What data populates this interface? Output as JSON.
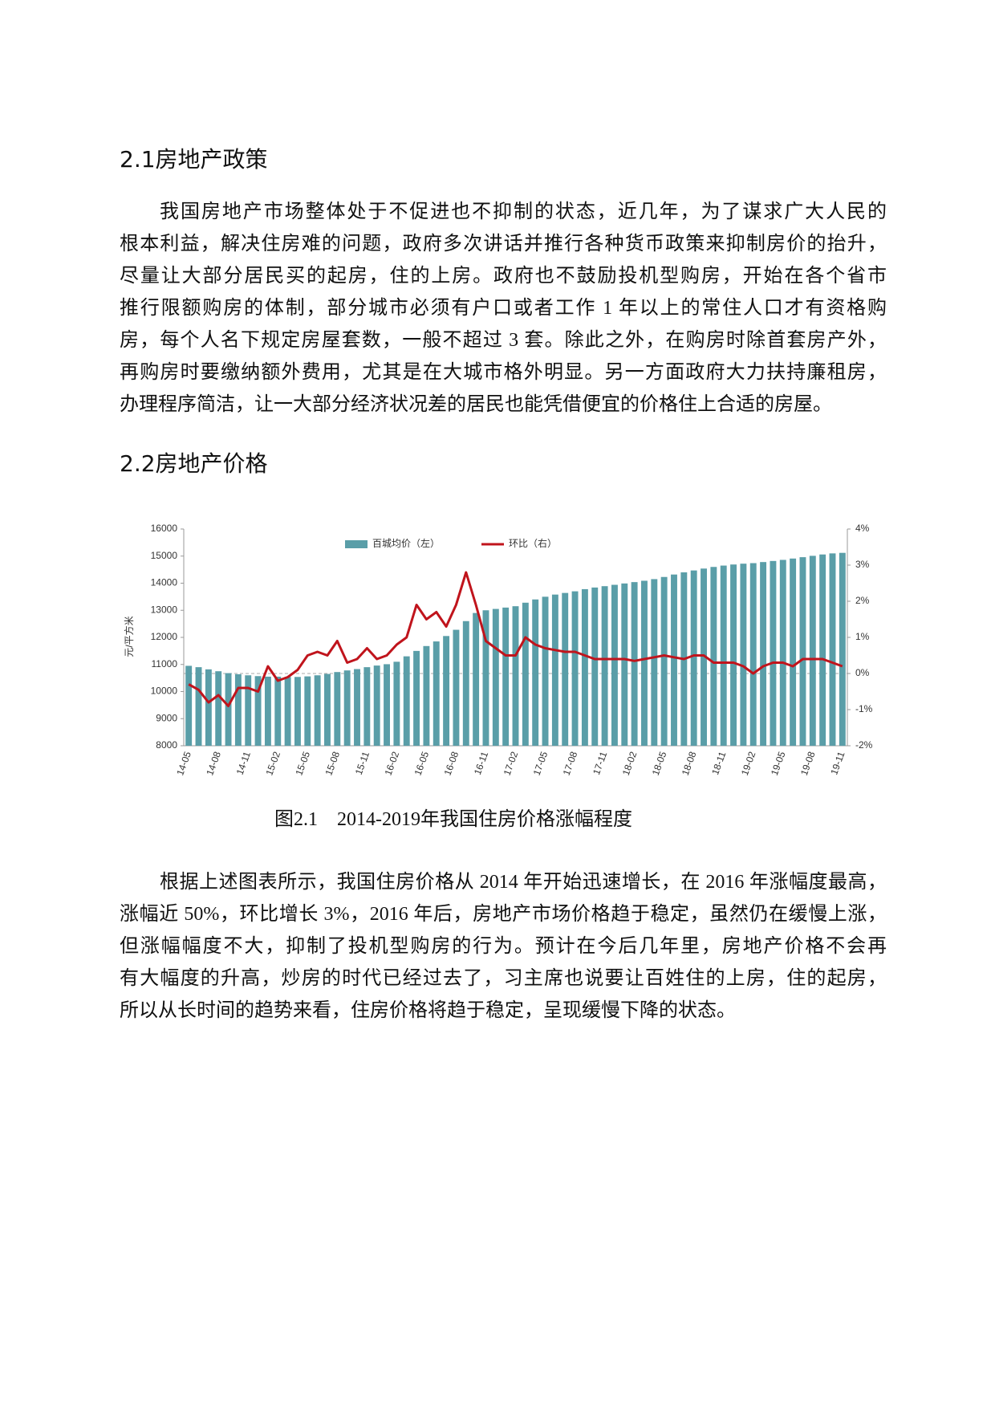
{
  "heading_1": "2.1房地产政策",
  "paragraph_1": [
    "我国房地产市场整体处于不促进也不抑制的状态，近几年，为了谋求广大人民的",
    "根本利益，解决住房难的问题，政府多次讲话并推行各种货币政策来抑制房价的抬升，",
    "尽量让大部分居民买的起房，住的上房。政府也不鼓励投机型购房，开始在各个省市",
    "推行限额购房的体制，部分城市必须有户口或者工作 1 年以上的常住人口才有资格购",
    "房，每个人名下规定房屋套数，一般不超过 3 套。除此之外，在购房时除首套房产外，",
    "再购房时要缴纳额外费用，尤其是在大城市格外明显。另一方面政府大力扶持廉租房，",
    "办理程序简洁，让一大部分经济状况差的居民也能凭借便宜的价格住上合适的房屋。"
  ],
  "heading_2": "2.2房地产价格",
  "chart_data": {
    "type": "combo",
    "y_label": "元/平方米",
    "categories": [
      "14-05",
      null,
      null,
      "14-08",
      null,
      null,
      "14-11",
      null,
      null,
      "15-02",
      null,
      null,
      "15-05",
      null,
      null,
      "15-08",
      null,
      null,
      "15-11",
      null,
      null,
      "16-02",
      null,
      null,
      "16-05",
      null,
      null,
      "16-08",
      null,
      null,
      "16-11",
      null,
      null,
      "17-02",
      null,
      null,
      "17-05",
      null,
      null,
      "17-08",
      null,
      null,
      "17-11",
      null,
      null,
      "18-02",
      null,
      null,
      "18-05",
      null,
      null,
      "18-08",
      null,
      null,
      "18-11",
      null,
      null,
      "19-02",
      null,
      null,
      "19-05",
      null,
      null,
      "19-08",
      null,
      null,
      "19-11"
    ],
    "series": [
      {
        "name": "百城均价（左）",
        "type": "bar",
        "color": "#5a9ea8",
        "values": [
          10950,
          10900,
          10820,
          10750,
          10680,
          10640,
          10600,
          10570,
          10550,
          10550,
          10540,
          10540,
          10560,
          10600,
          10650,
          10720,
          10780,
          10830,
          10900,
          10960,
          11010,
          11100,
          11300,
          11500,
          11680,
          11850,
          12050,
          12280,
          12600,
          12900,
          13000,
          13050,
          13100,
          13150,
          13280,
          13400,
          13500,
          13580,
          13640,
          13700,
          13780,
          13840,
          13890,
          13940,
          13990,
          14040,
          14090,
          14150,
          14230,
          14320,
          14400,
          14470,
          14540,
          14600,
          14650,
          14690,
          14720,
          14740,
          14780,
          14820,
          14860,
          14910,
          14960,
          15010,
          15060,
          15100,
          15120
        ]
      },
      {
        "name": "环比（右）",
        "type": "line",
        "axis": "y2",
        "color": "#c0141c",
        "values": [
          -0.3,
          -0.45,
          -0.8,
          -0.6,
          -0.9,
          -0.4,
          -0.4,
          -0.5,
          0.2,
          -0.2,
          -0.1,
          0.1,
          0.5,
          0.6,
          0.5,
          0.9,
          0.3,
          0.4,
          0.7,
          0.4,
          0.5,
          0.8,
          1.0,
          1.9,
          1.5,
          1.7,
          1.3,
          1.9,
          2.8,
          1.9,
          0.9,
          0.7,
          0.5,
          0.5,
          1.0,
          0.8,
          0.7,
          0.65,
          0.6,
          0.6,
          0.5,
          0.4,
          0.4,
          0.4,
          0.4,
          0.35,
          0.4,
          0.45,
          0.5,
          0.45,
          0.4,
          0.5,
          0.5,
          0.3,
          0.3,
          0.3,
          0.2,
          0.0,
          0.2,
          0.3,
          0.3,
          0.2,
          0.4,
          0.4,
          0.4,
          0.3,
          0.2
        ]
      }
    ],
    "ylim": [
      8000,
      16000
    ],
    "yticks": [
      8000,
      9000,
      10000,
      11000,
      12000,
      13000,
      14000,
      15000,
      16000
    ],
    "y2lim": [
      -2,
      4
    ],
    "y2ticks": [
      {
        "value": -2,
        "label": "-2%"
      },
      {
        "value": -1,
        "label": "-1%"
      },
      {
        "value": 0,
        "label": "0%"
      },
      {
        "value": 1,
        "label": "1%"
      },
      {
        "value": 2,
        "label": "2%"
      },
      {
        "value": 3,
        "label": "3%"
      },
      {
        "value": 4,
        "label": "4%"
      }
    ],
    "zero_line": true,
    "legend": "top"
  },
  "caption": "图2.1　2014-2019年我国住房价格涨幅程度",
  "paragraph_2": [
    "根据上述图表所示，我国住房价格从 2014 年开始迅速增长，在 2016 年涨幅度最高，",
    "涨幅近 50%，环比增长 3%，2016 年后，房地产市场价格趋于稳定，虽然仍在缓慢上涨，",
    "但涨幅幅度不大，抑制了投机型购房的行为。预计在今后几年里，房地产价格不会再",
    "有大幅度的升高，炒房的时代已经过去了，习主席也说要让百姓住的上房，住的起房，",
    "所以从长时间的趋势来看，住房价格将趋于稳定，呈现缓慢下降的状态。"
  ]
}
